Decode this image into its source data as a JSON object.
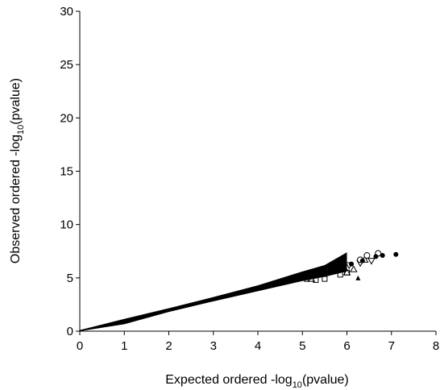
{
  "chart_data": {
    "type": "scatter",
    "title": "",
    "xlabel_parts": {
      "pre": "Expected ordered -log",
      "sub": "10",
      "post": "(pvalue)"
    },
    "ylabel_parts": {
      "pre": "Observed ordered -log",
      "sub": "10",
      "post": "(pvalue)"
    },
    "xlim": [
      0,
      8
    ],
    "ylim": [
      0,
      30
    ],
    "xticks": [
      "0",
      "1",
      "2",
      "3",
      "4",
      "5",
      "6",
      "7",
      "8"
    ],
    "yticks": [
      "0",
      "5",
      "10",
      "15",
      "20",
      "25",
      "30"
    ],
    "grid": false,
    "legend": "none",
    "colors": {
      "marks": "#000000",
      "axis": "#000000",
      "background": "#ffffff"
    },
    "band": {
      "x": [
        0,
        1,
        2,
        3,
        4,
        5,
        5.5,
        6
      ],
      "upper": [
        0.1,
        1.15,
        2.15,
        3.2,
        4.3,
        5.6,
        6.2,
        7.4
      ],
      "lower": [
        0,
        0.65,
        1.8,
        2.8,
        3.75,
        4.7,
        5.1,
        5.6
      ]
    },
    "points_filled_circle": [
      [
        6.1,
        6.3
      ],
      [
        6.35,
        6.6
      ],
      [
        6.65,
        7.0
      ],
      [
        6.8,
        7.1
      ],
      [
        7.1,
        7.2
      ]
    ],
    "points_open_circle": [
      [
        6.3,
        6.7
      ],
      [
        6.45,
        7.1
      ],
      [
        6.7,
        7.3
      ]
    ],
    "points_triangle": [
      [
        6.15,
        5.8
      ],
      [
        6.4,
        6.7
      ],
      [
        6.0,
        5.5
      ],
      [
        5.2,
        4.9
      ]
    ],
    "points_down_triangle": [
      [
        6.05,
        6.2
      ],
      [
        6.3,
        6.4
      ],
      [
        6.55,
        6.6
      ]
    ],
    "points_filled_triangle": [
      [
        6.25,
        5.0
      ]
    ],
    "points_square": [
      [
        5.3,
        4.8
      ],
      [
        5.5,
        4.9
      ],
      [
        5.85,
        5.3
      ],
      [
        6.0,
        5.5
      ],
      [
        5.1,
        4.9
      ]
    ]
  }
}
